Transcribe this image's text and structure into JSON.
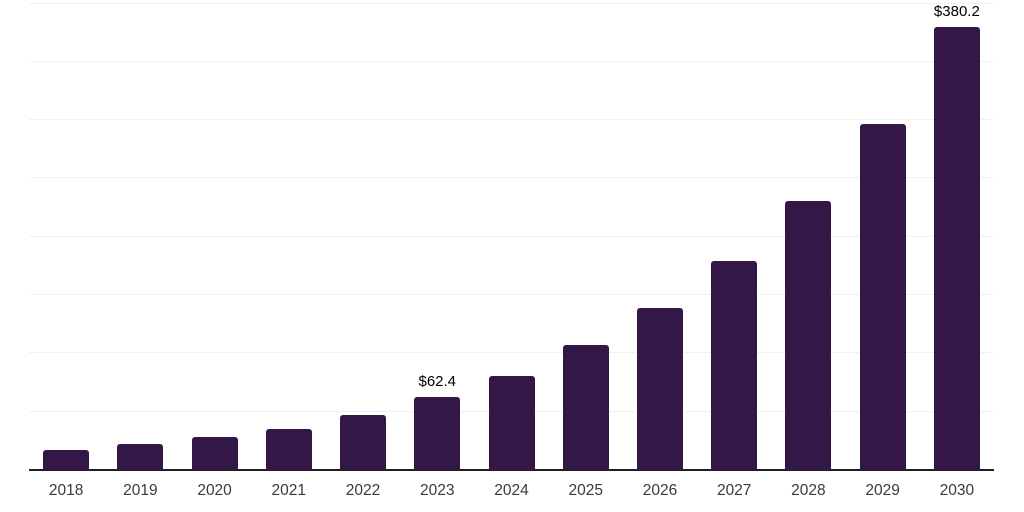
{
  "chart_data": {
    "type": "bar",
    "title": "",
    "xlabel": "",
    "ylabel": "",
    "categories": [
      "2018",
      "2019",
      "2020",
      "2021",
      "2022",
      "2023",
      "2024",
      "2025",
      "2026",
      "2027",
      "2028",
      "2029",
      "2030"
    ],
    "values": [
      16.9,
      22.5,
      28.2,
      35.4,
      47.6,
      62.4,
      80.8,
      106.9,
      138.5,
      179.2,
      231.0,
      296.5,
      380.2
    ],
    "data_labels": {
      "2023": "$62.4",
      "2030": "$380.2"
    },
    "ylim": [
      0,
      403
    ],
    "gridline_interval": 50,
    "grid": true,
    "legend_position": "none",
    "colors": {
      "bar": "#321747",
      "gridline": "#f1f1f1",
      "axis_line": "#1f1f1f",
      "tick_label": "#3a3a3a",
      "value_label": "#000000",
      "background": "#ffffff"
    }
  }
}
